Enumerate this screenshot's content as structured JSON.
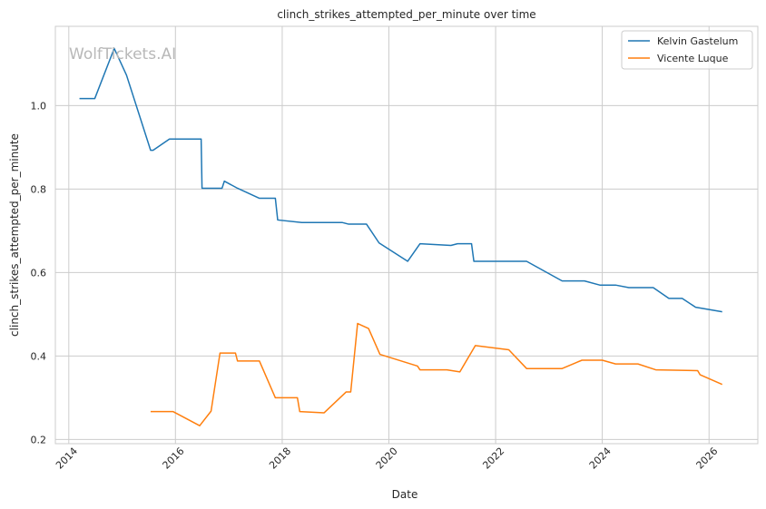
{
  "chart_data": {
    "type": "line",
    "title": "clinch_strikes_attempted_per_minute over time",
    "xlabel": "Date",
    "ylabel": "clinch_strikes_attempted_per_minute",
    "xlim": [
      "2013-10-01",
      "2026-12-01"
    ],
    "ylim": [
      0.19,
      1.19
    ],
    "x_ticks": [
      "2014",
      "2016",
      "2018",
      "2020",
      "2022",
      "2024",
      "2026"
    ],
    "y_ticks": [
      "0.2",
      "0.4",
      "0.6",
      "0.8",
      "1.0"
    ],
    "grid": true,
    "legend_position": "top-right",
    "watermark": "WolfTickets.AI",
    "series": [
      {
        "name": "Kelvin Gastelum",
        "color": "#1f77b4",
        "points": [
          [
            "2014-03-15",
            1.017
          ],
          [
            "2014-06-28",
            1.017
          ],
          [
            "2014-11-08",
            1.137
          ],
          [
            "2015-01-31",
            1.073
          ],
          [
            "2015-07-15",
            0.893
          ],
          [
            "2015-08-01",
            0.893
          ],
          [
            "2015-11-21",
            0.92
          ],
          [
            "2016-06-25",
            0.92
          ],
          [
            "2016-07-01",
            0.802
          ],
          [
            "2016-11-15",
            0.802
          ],
          [
            "2016-12-01",
            0.819
          ],
          [
            "2017-03-01",
            0.802
          ],
          [
            "2017-07-29",
            0.778
          ],
          [
            "2017-11-15",
            0.778
          ],
          [
            "2017-12-01",
            0.726
          ],
          [
            "2018-05-15",
            0.72
          ],
          [
            "2019-02-15",
            0.72
          ],
          [
            "2019-04-01",
            0.716
          ],
          [
            "2019-08-01",
            0.716
          ],
          [
            "2019-10-26",
            0.671
          ],
          [
            "2020-05-09",
            0.627
          ],
          [
            "2020-08-01",
            0.669
          ],
          [
            "2021-03-01",
            0.665
          ],
          [
            "2021-04-15",
            0.669
          ],
          [
            "2021-07-20",
            0.669
          ],
          [
            "2021-08-05",
            0.627
          ],
          [
            "2022-08-01",
            0.627
          ],
          [
            "2023-04-01",
            0.58
          ],
          [
            "2023-09-01",
            0.58
          ],
          [
            "2023-12-15",
            0.57
          ],
          [
            "2024-04-01",
            0.57
          ],
          [
            "2024-07-01",
            0.564
          ],
          [
            "2024-12-15",
            0.564
          ],
          [
            "2025-04-01",
            0.538
          ],
          [
            "2025-07-01",
            0.538
          ],
          [
            "2025-10-01",
            0.517
          ],
          [
            "2026-04-01",
            0.506
          ]
        ]
      },
      {
        "name": "Vicente Luque",
        "color": "#ff7f0e",
        "points": [
          [
            "2015-07-15",
            0.267
          ],
          [
            "2015-12-15",
            0.267
          ],
          [
            "2016-06-15",
            0.233
          ],
          [
            "2016-09-01",
            0.268
          ],
          [
            "2016-11-01",
            0.407
          ],
          [
            "2017-02-15",
            0.407
          ],
          [
            "2017-03-01",
            0.388
          ],
          [
            "2017-07-29",
            0.388
          ],
          [
            "2017-11-15",
            0.3
          ],
          [
            "2018-04-15",
            0.3
          ],
          [
            "2018-05-01",
            0.267
          ],
          [
            "2018-10-15",
            0.264
          ],
          [
            "2019-03-15",
            0.314
          ],
          [
            "2019-04-15",
            0.314
          ],
          [
            "2019-06-01",
            0.478
          ],
          [
            "2019-08-15",
            0.466
          ],
          [
            "2019-11-01",
            0.404
          ],
          [
            "2020-07-15",
            0.376
          ],
          [
            "2020-08-01",
            0.367
          ],
          [
            "2021-02-01",
            0.367
          ],
          [
            "2021-05-01",
            0.362
          ],
          [
            "2021-08-15",
            0.425
          ],
          [
            "2022-04-01",
            0.415
          ],
          [
            "2022-08-01",
            0.37
          ],
          [
            "2023-04-01",
            0.37
          ],
          [
            "2023-08-15",
            0.39
          ],
          [
            "2024-01-01",
            0.39
          ],
          [
            "2024-04-01",
            0.381
          ],
          [
            "2024-09-01",
            0.381
          ],
          [
            "2025-01-01",
            0.367
          ],
          [
            "2025-10-15",
            0.365
          ],
          [
            "2025-11-01",
            0.355
          ],
          [
            "2026-04-01",
            0.332
          ]
        ]
      }
    ]
  }
}
